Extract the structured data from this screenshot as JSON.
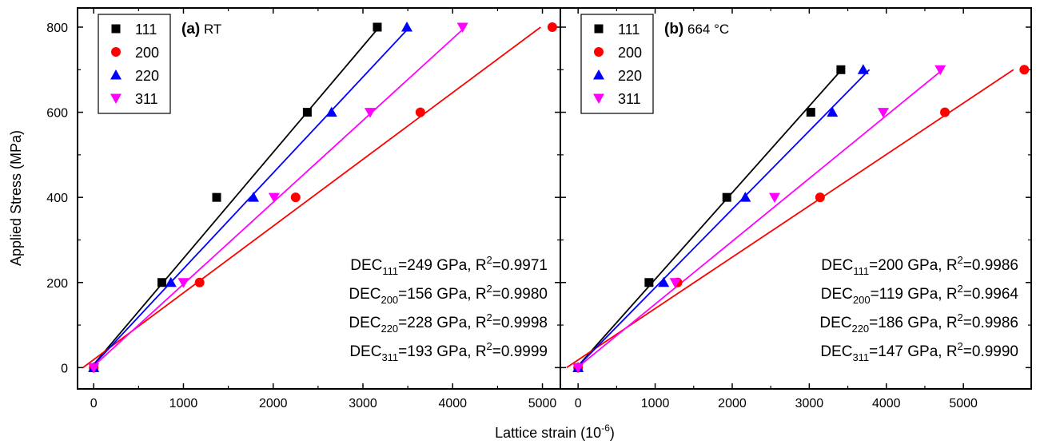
{
  "chart_data": [
    {
      "type": "scatter",
      "panel_label": "(a)",
      "panel_title": "RT",
      "xlabel": "Lattice strain (10",
      "xlabel_exponent": "-6",
      "xlabel_close": ")",
      "ylabel": "Applied Stress (MPa)",
      "xlim": [
        -180,
        5200
      ],
      "ylim": [
        -50,
        845
      ],
      "xticks": [
        0,
        1000,
        2000,
        3000,
        4000,
        5000
      ],
      "yticks": [
        0,
        200,
        400,
        600,
        800
      ],
      "legend_position": "top-left",
      "series": [
        {
          "name": "111",
          "marker": "square",
          "color": "#000000",
          "x": [
            0,
            760,
            1370,
            2380,
            3160
          ],
          "y": [
            0,
            200,
            400,
            600,
            800
          ],
          "fit": {
            "x": [
              -30,
              3180
            ],
            "y": [
              0,
              800
            ]
          }
        },
        {
          "name": "200",
          "marker": "circle",
          "color": "#ff0000",
          "x": [
            0,
            1180,
            2250,
            3640,
            5110
          ],
          "y": [
            0,
            200,
            400,
            600,
            800
          ],
          "fit": {
            "x": [
              -120,
              4980
            ],
            "y": [
              0,
              800
            ]
          }
        },
        {
          "name": "220",
          "marker": "triangle-up",
          "color": "#0000ff",
          "x": [
            0,
            860,
            1780,
            2650,
            3490
          ],
          "y": [
            0,
            200,
            400,
            600,
            800
          ],
          "fit": {
            "x": [
              -30,
              3520
            ],
            "y": [
              0,
              800
            ]
          }
        },
        {
          "name": "311",
          "marker": "triangle-down",
          "color": "#ff00ff",
          "x": [
            0,
            1000,
            2010,
            3080,
            4110
          ],
          "y": [
            0,
            200,
            400,
            600,
            800
          ],
          "fit": {
            "x": [
              -20,
              4140
            ],
            "y": [
              0,
              800
            ]
          }
        }
      ],
      "annotations": [
        {
          "prefix": "DEC",
          "sub": "111",
          "mid": "=249 GPa, R",
          "sup": "2",
          "suffix": "=0.9971"
        },
        {
          "prefix": "DEC",
          "sub": "200",
          "mid": "=156 GPa, R",
          "sup": "2",
          "suffix": "=0.9980"
        },
        {
          "prefix": "DEC",
          "sub": "220",
          "mid": "=228 GPa, R",
          "sup": "2",
          "suffix": "=0.9998"
        },
        {
          "prefix": "DEC",
          "sub": "311",
          "mid": "=193 GPa, R",
          "sup": "2",
          "suffix": "=0.9999"
        }
      ]
    },
    {
      "type": "scatter",
      "panel_label": "(b)",
      "panel_title": "664 °C",
      "xlabel": "Lattice strain (10",
      "xlabel_exponent": "-6",
      "xlabel_close": ")",
      "ylabel": "",
      "xlim": [
        -230,
        5880
      ],
      "ylim": [
        -50,
        845
      ],
      "xticks": [
        0,
        1000,
        2000,
        3000,
        4000,
        5000
      ],
      "yticks": [
        0,
        200,
        400,
        600,
        800
      ],
      "legend_position": "top-left",
      "series": [
        {
          "name": "111",
          "marker": "square",
          "color": "#000000",
          "x": [
            0,
            920,
            1930,
            3020,
            3410
          ],
          "y": [
            0,
            200,
            400,
            600,
            700
          ],
          "fit": {
            "x": [
              -20,
              3420
            ],
            "y": [
              0,
              700
            ]
          }
        },
        {
          "name": "200",
          "marker": "circle",
          "color": "#ff0000",
          "x": [
            0,
            1290,
            3140,
            4760,
            5790
          ],
          "y": [
            0,
            200,
            400,
            600,
            700
          ],
          "fit": {
            "x": [
              -150,
              5650
            ],
            "y": [
              0,
              700
            ]
          }
        },
        {
          "name": "220",
          "marker": "triangle-up",
          "color": "#0000ff",
          "x": [
            0,
            1110,
            2170,
            3300,
            3700
          ],
          "y": [
            0,
            200,
            400,
            600,
            700
          ],
          "fit": {
            "x": [
              -20,
              3780
            ],
            "y": [
              0,
              700
            ]
          }
        },
        {
          "name": "311",
          "marker": "triangle-down",
          "color": "#ff00ff",
          "x": [
            0,
            1260,
            2550,
            3960,
            4700
          ],
          "y": [
            0,
            200,
            400,
            600,
            700
          ],
          "fit": {
            "x": [
              -10,
              4730
            ],
            "y": [
              0,
              700
            ]
          }
        }
      ],
      "annotations": [
        {
          "prefix": "DEC",
          "sub": "111",
          "mid": "=200 GPa, R",
          "sup": "2",
          "suffix": "=0.9986"
        },
        {
          "prefix": "DEC",
          "sub": "200",
          "mid": "=119 GPa, R",
          "sup": "2",
          "suffix": "=0.9964"
        },
        {
          "prefix": "DEC",
          "sub": "220",
          "mid": "=186 GPa, R",
          "sup": "2",
          "suffix": "=0.9986"
        },
        {
          "prefix": "DEC",
          "sub": "311",
          "mid": "=147 GPa, R",
          "sup": "2",
          "suffix": "=0.9990"
        }
      ]
    }
  ]
}
